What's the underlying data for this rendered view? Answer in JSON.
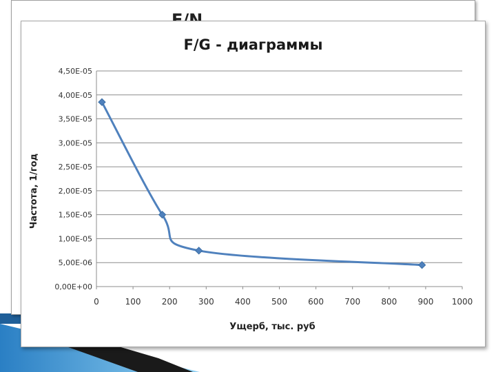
{
  "background_chart": {
    "title_fragment": "F/N"
  },
  "chart_data": {
    "type": "line",
    "title": "F/G - диаграммы",
    "xlabel": "Ущерб, тыс. руб",
    "ylabel": "Частота, 1/год",
    "xlim": [
      0,
      1000
    ],
    "ylim": [
      0,
      4.5e-05
    ],
    "x_ticks": [
      "0",
      "100",
      "200",
      "300",
      "400",
      "500",
      "600",
      "700",
      "800",
      "900",
      "1000"
    ],
    "y_ticks": [
      "0,00E+00",
      "5,00E-06",
      "1,00E-05",
      "1,50E-05",
      "2,00E-05",
      "2,50E-05",
      "3,00E-05",
      "3,50E-05",
      "4,00E-05",
      "4,50E-05"
    ],
    "grid": true,
    "legend": false,
    "series": [
      {
        "color": "#4F81BD",
        "marker": "diamond",
        "x": [
          15,
          180,
          280,
          890
        ],
        "y": [
          3.85e-05,
          1.5e-05,
          7.5e-06,
          4.5e-06
        ]
      }
    ]
  }
}
